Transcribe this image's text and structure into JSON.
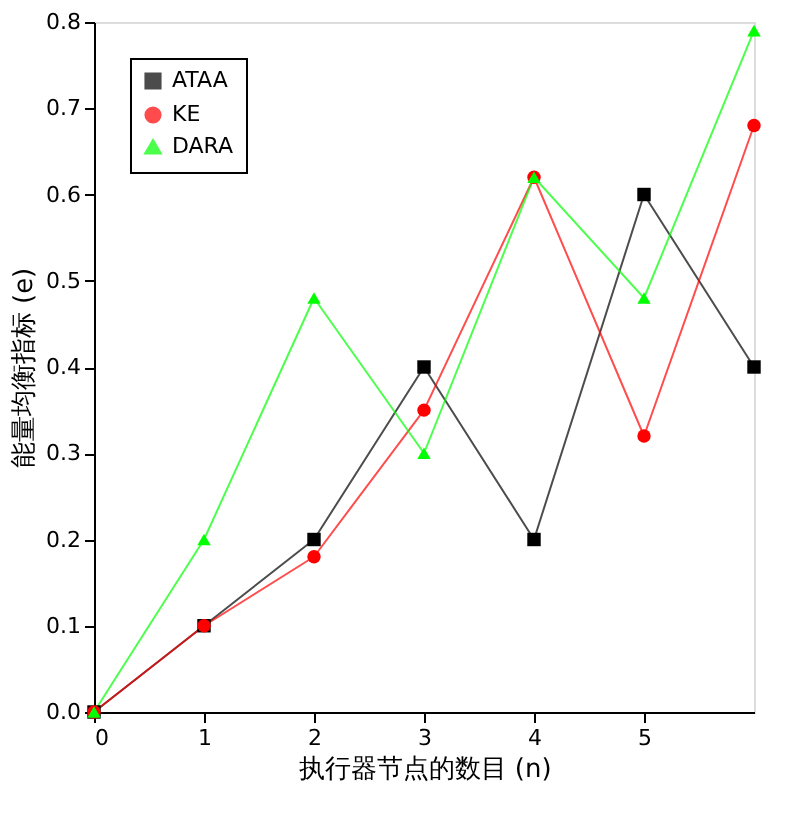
{
  "chart_data": {
    "type": "line",
    "xlabel": "执行器节点的数目 (n)",
    "ylabel": "能量均衡指标 (e)",
    "x": [
      0,
      1,
      2,
      3,
      4,
      5,
      6
    ],
    "series": [
      {
        "name": "ATAA",
        "color": "#000000",
        "marker": "square",
        "values": [
          0,
          0.1,
          0.2,
          0.4,
          0.2,
          0.6,
          0.4
        ]
      },
      {
        "name": "KE",
        "color": "#ff0000",
        "marker": "circle",
        "values": [
          0,
          0.1,
          0.18,
          0.35,
          0.62,
          0.32,
          0.68
        ]
      },
      {
        "name": "DARA",
        "color": "#00ff00",
        "marker": "triangle",
        "values": [
          0,
          0.2,
          0.48,
          0.3,
          0.62,
          0.48,
          0.79
        ]
      }
    ],
    "xlim": [
      0,
      6
    ],
    "xticks": [
      0,
      1,
      2,
      3,
      4,
      5
    ],
    "ylim": [
      0,
      0.8
    ],
    "yticks": [
      {
        "value": 0,
        "label": "0.0"
      },
      0.1,
      0.2,
      0.3,
      0.4,
      0.5,
      0.6,
      0.7,
      0.8
    ],
    "grid": false,
    "legend": "top left",
    "line_style": "solid"
  }
}
